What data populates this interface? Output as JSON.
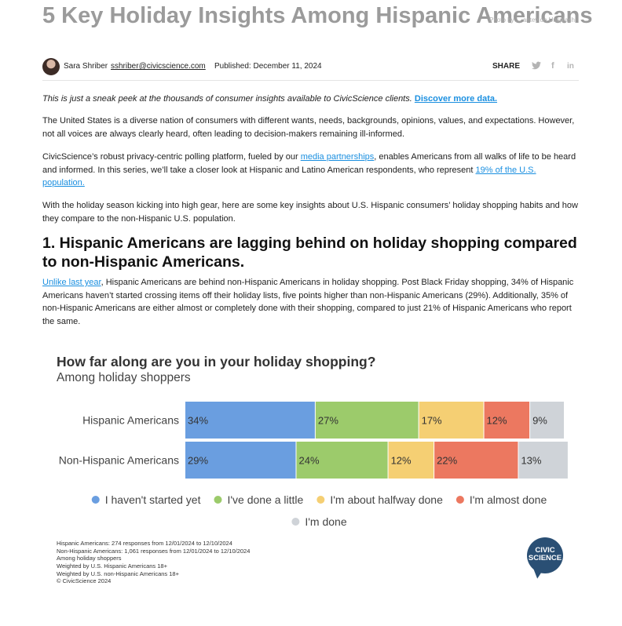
{
  "hero": {
    "title": "5 Key Holiday Insights Among Hispanic Americans",
    "photo_credit": "Photo by ... antev on Unsplash"
  },
  "author": {
    "name": "Sara Shriber",
    "email": "sshriber@civicscience.com",
    "published": "Published: December 11, 2024",
    "share_label": "SHARE",
    "icons": [
      "twitter-icon",
      "facebook-icon",
      "linkedin-icon"
    ]
  },
  "intro": {
    "sneak_peek": "This is just a sneak peek at the thousands of consumer insights available to CivicScience clients.",
    "cta_link": "Discover more data.",
    "p1": "The United States is a diverse nation of consumers with different wants, needs, backgrounds, opinions, values, and expectations. However, not all voices are always clearly heard, often leading to decision-makers remaining ill-informed.",
    "p2_a": "CivicScience’s robust privacy-centric polling platform, fueled by our ",
    "p2_link1": "media partnerships",
    "p2_b": ", enables Americans from all walks of life to be heard and informed. In this series, we’ll take a closer look at Hispanic and Latino American respondents, who represent ",
    "p2_link2": "19% of the U.S. population.",
    "p3": "With the holiday season kicking into high gear, here are some key insights about U.S. Hispanic consumers’ holiday shopping habits and how they compare to the non-Hispanic U.S. population."
  },
  "section1": {
    "heading": "1. Hispanic Americans are lagging behind on holiday shopping compared to non-Hispanic Americans.",
    "link": "Unlike last year",
    "body": ", Hispanic Americans are behind non-Hispanic Americans in holiday shopping. Post Black Friday shopping, 34% of Hispanic Americans haven’t started crossing items off their holiday lists, five points higher than non-Hispanic Americans (29%). Additionally, 35% of non-Hispanic Americans are either almost or completely done with their shopping, compared to just 21% of Hispanic Americans who report the same."
  },
  "chart_data": {
    "type": "bar",
    "stacked": true,
    "orientation": "horizontal",
    "title": "How far along are you in your holiday shopping?",
    "subtitle": "Among holiday shoppers",
    "categories": [
      "Hispanic Americans",
      "Non-Hispanic Americans"
    ],
    "series": [
      {
        "name": "I haven't started yet",
        "values": [
          34,
          29
        ],
        "color": "#6a9ee0"
      },
      {
        "name": "I've done a little",
        "values": [
          27,
          24
        ],
        "color": "#9ccb6b"
      },
      {
        "name": "I'm about halfway done",
        "values": [
          17,
          12
        ],
        "color": "#f5cf73"
      },
      {
        "name": "I'm almost done",
        "values": [
          12,
          22
        ],
        "color": "#ec7860"
      },
      {
        "name": "I'm done",
        "values": [
          9,
          13
        ],
        "color": "#cfd3d8"
      }
    ],
    "value_suffix": "%",
    "xlim": [
      0,
      99
    ],
    "legend_position": "bottom"
  },
  "footnotes": [
    "Hispanic Americans: 274 responses from 12/01/2024 to 12/10/2024",
    "Non-Hispanic Americans: 1,061 responses from 12/01/2024 to 12/10/2024",
    "Among holiday shoppers",
    "Weighted by U.S. Hispanic Americans 18+",
    "Weighted by U.S. non-Hispanic Americans 18+",
    "© CivicScience 2024"
  ],
  "logo": {
    "line1": "CIVIC",
    "line2": "SCIENCE",
    "color": "#2a4f74"
  }
}
